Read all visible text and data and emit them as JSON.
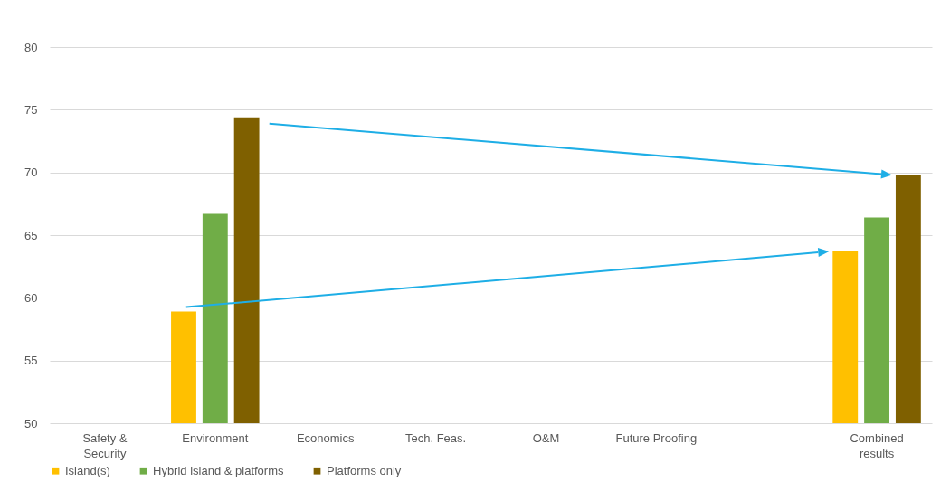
{
  "chart_data": {
    "type": "bar",
    "categories": [
      "Safety & Security",
      "Environment",
      "Economics",
      "Tech. Feas.",
      "O&M",
      "Future Proofing",
      null,
      "Combined results"
    ],
    "series": [
      {
        "name": "Island(s)",
        "color": "#ffc000",
        "values": [
          null,
          58.9,
          null,
          null,
          null,
          null,
          null,
          63.7
        ]
      },
      {
        "name": "Hybrid island & platforms",
        "color": "#70ad47",
        "values": [
          null,
          66.7,
          null,
          null,
          null,
          null,
          null,
          66.4
        ]
      },
      {
        "name": "Platforms only",
        "color": "#7f6000",
        "values": [
          null,
          74.4,
          null,
          null,
          null,
          null,
          null,
          69.8
        ]
      }
    ],
    "ylim": [
      50,
      80
    ],
    "yticks": [
      50,
      55,
      60,
      65,
      70,
      75,
      80
    ],
    "grid": "y",
    "legend": "bottom"
  }
}
